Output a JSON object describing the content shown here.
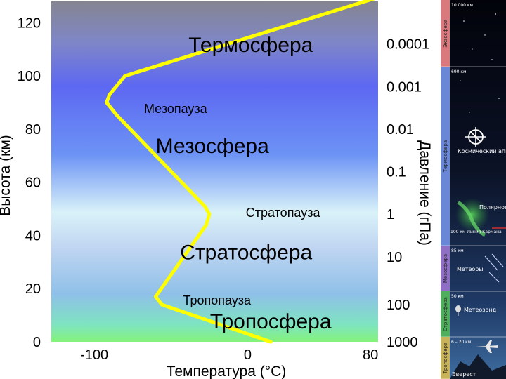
{
  "chart_data": {
    "type": "line",
    "xlabel": "Температура (°C)",
    "ylabel": "Высота (км)",
    "y2label": "Давление (гПа)",
    "xlim": [
      -128,
      85
    ],
    "ylim": [
      0,
      128
    ],
    "x_ticks": [
      -100,
      0,
      80
    ],
    "y_ticks": [
      0,
      20,
      40,
      60,
      80,
      100,
      120
    ],
    "x_tick_labels": [
      "-100",
      "0",
      "80"
    ],
    "y_tick_labels": [
      "0",
      "20",
      "40",
      "60",
      "80",
      "100",
      "120"
    ],
    "pressure_ticks": [
      {
        "label": "1000",
        "height": 0
      },
      {
        "label": "100",
        "height": 14
      },
      {
        "label": "10",
        "height": 32
      },
      {
        "label": "1",
        "height": 48
      },
      {
        "label": "0.1",
        "height": 64
      },
      {
        "label": "0.01",
        "height": 80
      },
      {
        "label": "0.001",
        "height": 96
      },
      {
        "label": "0.0001",
        "height": 112
      }
    ],
    "series": [
      {
        "color": "#ffff00",
        "points": [
          [
            15,
            0
          ],
          [
            -56,
            14
          ],
          [
            -60,
            17
          ],
          [
            -27,
            44
          ],
          [
            -25,
            48
          ],
          [
            -28,
            51
          ],
          [
            -85,
            85
          ],
          [
            -92,
            90
          ],
          [
            -90,
            93
          ],
          [
            -80,
            100
          ],
          [
            82,
            129
          ]
        ]
      }
    ],
    "layers": [
      {
        "label": "Тропосфера",
        "x": 15,
        "y": 5
      },
      {
        "label": "Стратосфера",
        "x": -1,
        "y": 31
      },
      {
        "label": "Мезосфера",
        "x": -23,
        "y": 71
      },
      {
        "label": "Термосфера",
        "x": 2,
        "y": 109
      }
    ],
    "boundaries": [
      {
        "label": "Тропопауза",
        "x": -20,
        "y": 14
      },
      {
        "label": "Стратопауза",
        "x": 23,
        "y": 47
      },
      {
        "label": "Мезопауза",
        "x": -47,
        "y": 86
      }
    ]
  },
  "side_panel": {
    "bands": [
      {
        "name": "Экзосфера",
        "top_text": "10 000 км",
        "color": "#d9797d"
      },
      {
        "name": "Термосфера",
        "top_text": "690 км",
        "color": "#6a86d6"
      },
      {
        "name": "Мезосфера",
        "top_text": "85 км",
        "color": "#8f6fc4"
      },
      {
        "name": "Стратосфера",
        "top_text": "50 км",
        "color": "#4fae5c"
      },
      {
        "name": "Тропосфера",
        "top_text": "6 – 20 км",
        "color": "#c8b25a"
      }
    ],
    "labels": {
      "spacecraft": "Космический аппарат",
      "aurora": "Полярное сияние",
      "karman": "100 км Линия Кармана",
      "meteors": "Метеоры",
      "balloon": "Метеозонд",
      "everest": "Эверест"
    }
  }
}
